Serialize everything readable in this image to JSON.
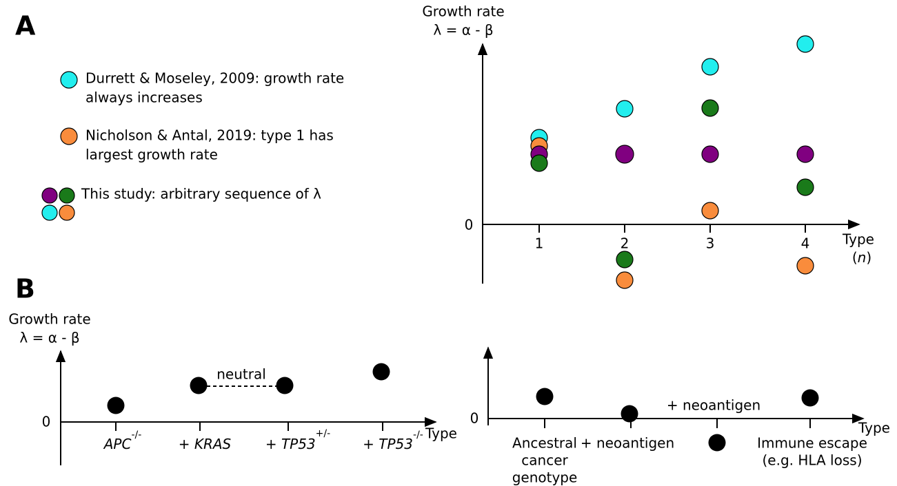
{
  "panel_a": {
    "label": "A",
    "y_axis_label": [
      "Growth rate",
      "λ = α - β"
    ],
    "zero_label": "0",
    "x_ticks": [
      "1",
      "2",
      "3",
      "4"
    ],
    "x_axis_label": "Type",
    "x_axis_symbol": [
      "(",
      "n",
      ")"
    ],
    "legend": [
      {
        "lines": [
          "Durrett & Moseley, 2009: growth rate",
          "always increases"
        ]
      },
      {
        "lines": [
          "Nicholson & Antal, 2019: type 1 has",
          "largest growth rate"
        ]
      },
      {
        "lines": [
          "This study: arbitrary sequence of λ"
        ]
      }
    ]
  },
  "panel_b": {
    "label": "B",
    "y_axis_label": [
      "Growth rate",
      "λ = α - β"
    ],
    "left": {
      "zero_label": "0",
      "x_axis_label": "Type",
      "annotation": "neutral",
      "x_ticks": [
        {
          "gene": "APC",
          "superscript": "-/-"
        },
        {
          "prefix": "+ ",
          "gene": "KRAS"
        },
        {
          "prefix": "+ ",
          "gene": "TP53",
          "superscript": "+/-"
        },
        {
          "prefix": "+ ",
          "gene": "TP53",
          "superscript": "-/-"
        }
      ]
    },
    "right": {
      "zero_label": "0",
      "x_axis_label": "Type",
      "annotation": "+ neoantigen",
      "x_ticks": [
        {
          "lines": [
            "Ancestral",
            "cancer",
            "genotype"
          ]
        },
        {
          "lines": [
            "+ neoantigen"
          ]
        },
        {
          "lines": []
        },
        {
          "lines": [
            "Immune escape",
            "(e.g. HLA loss)"
          ]
        }
      ]
    }
  }
}
